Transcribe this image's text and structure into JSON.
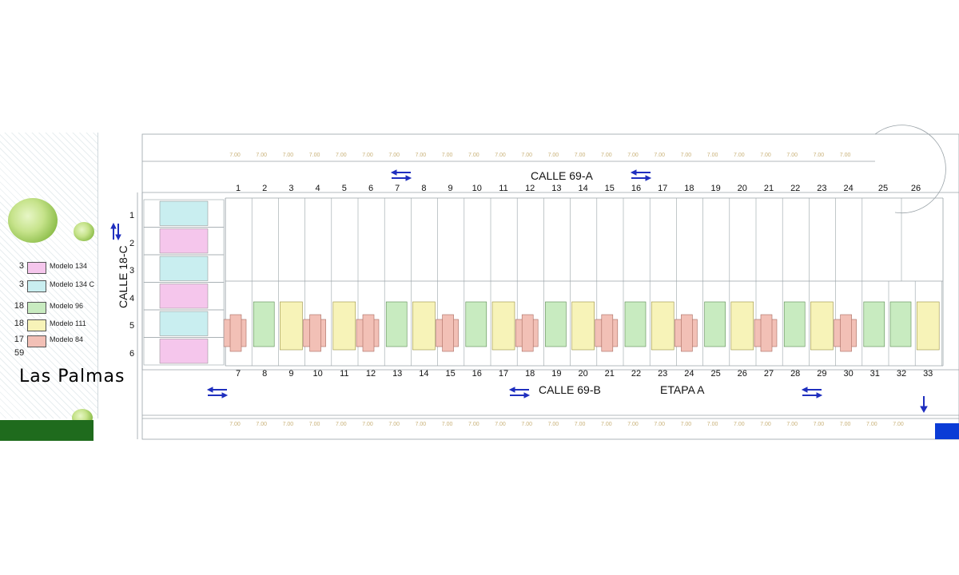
{
  "streets": {
    "top": "CALLE 69-A",
    "bottom": "CALLE 69-B",
    "stage": "ETAPA A",
    "side": "CALLE 18-C"
  },
  "brand": "Las Palmas",
  "legend": {
    "items": [
      {
        "count": "3",
        "label": "Modelo 134",
        "color": "#f5c6ec"
      },
      {
        "count": "3",
        "label": "Modelo 134 C",
        "color": "#c9eef0"
      },
      {
        "count": "18",
        "label": "Modelo 96",
        "color": "#c8ebc0"
      },
      {
        "count": "18",
        "label": "Modelo 111",
        "color": "#f7f3b8"
      },
      {
        "count": "17",
        "label": "Modelo 84",
        "color": "#f2c0b6"
      }
    ],
    "total": "59"
  },
  "colors": {
    "modelo134": "#f5c6ec",
    "modelo134c": "#c9eef0",
    "modelo96": "#c8ebc0",
    "modelo111": "#f7f3b8",
    "modelo84": "#f2c0b6",
    "arrow": "#1f2fbf",
    "lotline": "#9aa3a8",
    "dim": "#c9b27a"
  },
  "top_lots": [
    "1",
    "2",
    "3",
    "4",
    "5",
    "6",
    "7",
    "8",
    "9",
    "10",
    "11",
    "12",
    "13",
    "14",
    "15",
    "16",
    "17",
    "18",
    "19",
    "20",
    "21",
    "22",
    "23",
    "24",
    "25",
    "26"
  ],
  "bottom_lots": [
    "7",
    "8",
    "9",
    "10",
    "11",
    "12",
    "13",
    "14",
    "15",
    "16",
    "17",
    "18",
    "19",
    "20",
    "21",
    "22",
    "23",
    "24",
    "25",
    "26",
    "27",
    "28",
    "29",
    "30",
    "31",
    "32",
    "33"
  ],
  "side_lots": [
    "1",
    "2",
    "3",
    "4",
    "5",
    "6"
  ],
  "bottom_pattern": [
    "84",
    "96",
    "111",
    "84",
    "111",
    "84",
    "96",
    "111",
    "84",
    "96",
    "111",
    "84",
    "96",
    "111",
    "84",
    "96",
    "111",
    "84",
    "96",
    "111",
    "84",
    "96",
    "111",
    "84",
    "96",
    "96",
    "111"
  ],
  "dimension_label": "7.00"
}
